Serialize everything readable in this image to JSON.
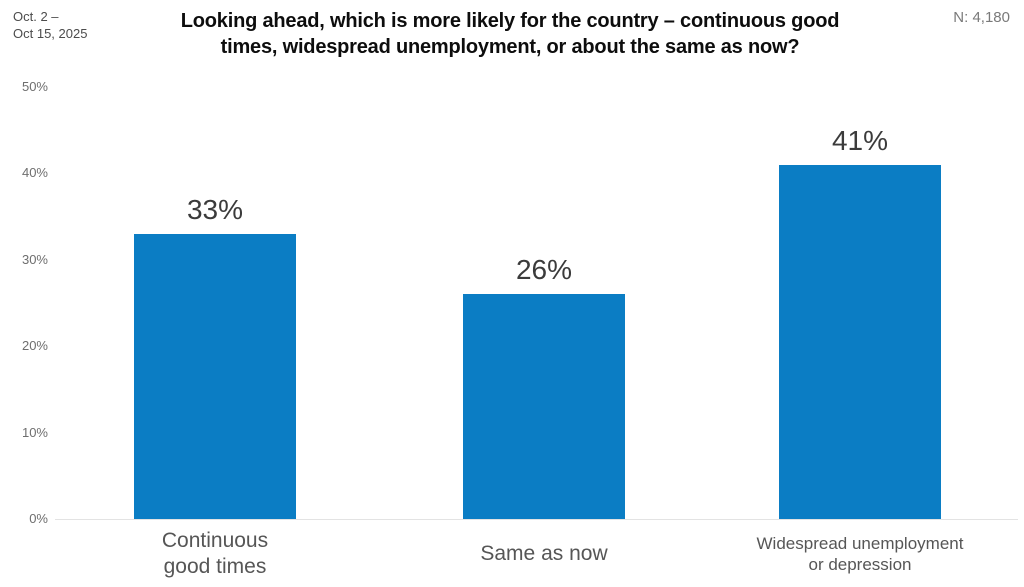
{
  "header": {
    "date_range": "Oct. 2 –\nOct 15, 2025",
    "title_display": "Looking ahead, which is more likely for the country – continuous good\ntimes, widespread unemployment, or about the same as now?",
    "sample_size_label": "N: 4,180"
  },
  "colors": {
    "bar": "#0b7dc4",
    "axis_text": "#6e6e6e",
    "value_text": "#3b3b3b",
    "category_text": "#565656",
    "title_text": "#0d0d0d",
    "date_text": "#4c4c4c",
    "n_text": "#7a7a7a",
    "baseline": "#e3e3e3"
  },
  "chart_data": {
    "type": "bar",
    "title": "Looking ahead, which is more likely for the country – continuous good times, widespread unemployment, or about the same as now?",
    "categories": [
      "Continuous good times",
      "Same as now",
      "Widespread unemployment or depression"
    ],
    "category_lines": [
      [
        "Continuous",
        "good times"
      ],
      [
        "Same as now"
      ],
      [
        "Widespread unemployment",
        "or depression"
      ]
    ],
    "values": [
      33,
      26,
      41
    ],
    "value_labels": [
      "33%",
      "26%",
      "41%"
    ],
    "y_ticks": [
      "0%",
      "10%",
      "20%",
      "30%",
      "40%",
      "50%"
    ],
    "y_tick_values": [
      0,
      10,
      20,
      30,
      40,
      50
    ],
    "ylim": [
      0,
      50
    ],
    "xlabel": "",
    "ylabel": "",
    "grid": false,
    "legend": null,
    "bar_color": "#0b7dc4",
    "annotations": {
      "sample_size": "N: 4,180",
      "date_range": "Oct. 2 – Oct 15, 2025"
    }
  }
}
